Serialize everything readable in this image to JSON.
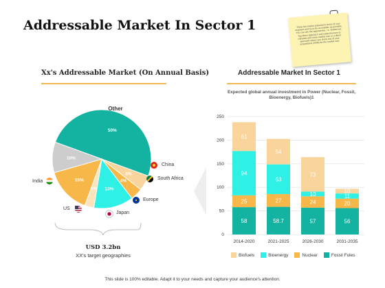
{
  "page": {
    "title": "Addressable Market In Sector 1",
    "footer": "This slide is 100% editable. Adapt it to your needs and capture your audience's attention.",
    "note_text": "Show the market potential in terms of your segment and try to be as realistic as possible. You can use the approaches, i.e. Bottom-up, Top-down approach and value theorem to calculate and show market size or a direct approach where you show one of your acquisitions (SAM) for the market size."
  },
  "left_panel": {
    "subtitle": "Xx's Addressable Market (On Annual Basis)",
    "total": "USD 3.2bn",
    "total_caption": "XX's target geographies"
  },
  "right_panel": {
    "subtitle": "Addressable Market In Sector 1",
    "description": "Expected global annual investment in Power (Nuclear, Fossil, Bioenergy, Biofuels)1"
  },
  "colors": {
    "teal": "#14b3a1",
    "cyan": "#2ff0e4",
    "peach": "#f9d49b",
    "orange": "#f8b749",
    "grey": "#cdcdcd",
    "light_peach": "#fbe3bc"
  },
  "chart_data": [
    {
      "type": "pie",
      "top_label": "Other",
      "slices": [
        {
          "label": "Other",
          "value": 50,
          "value_label": "50%",
          "color": "#14b3a1"
        },
        {
          "label": "China",
          "value": 5,
          "value_label": "5%",
          "color": "#f9d49b"
        },
        {
          "label": "South Africa",
          "value": 4,
          "value_label": "4%",
          "color": "#f8b749"
        },
        {
          "label": "Europe",
          "value": 13,
          "value_label": "13%",
          "color": "#2ff0e4"
        },
        {
          "label": "Japan",
          "value": 3,
          "value_label": "3%",
          "color": "#fbe3bc"
        },
        {
          "label": "US",
          "value": 15,
          "value_label": "15%",
          "color": "#f8b749"
        },
        {
          "label": "India",
          "value": 10,
          "value_label": "10%",
          "color": "#cdcdcd"
        }
      ],
      "country_labels": [
        "China",
        "South Africa",
        "Europe",
        "Japan",
        "US",
        "India"
      ]
    },
    {
      "type": "bar",
      "stacked": true,
      "categories": [
        "2014-2020",
        "2021-2025",
        "2026-2030",
        "2031-2035"
      ],
      "ylim": [
        0,
        250
      ],
      "yticks": [
        0,
        50,
        100,
        150,
        200,
        250
      ],
      "grid": true,
      "legend_position": "bottom",
      "series": [
        {
          "name": "Fossil Fules",
          "color": "#14b3a1",
          "values": [
            58,
            58.7,
            57,
            56
          ],
          "labels": [
            "58",
            "58.7",
            "57",
            "56"
          ]
        },
        {
          "name": "Nuclear",
          "color": "#f8b749",
          "values": [
            25,
            27,
            24,
            20
          ],
          "labels": [
            "25",
            "27",
            "24",
            "20"
          ]
        },
        {
          "name": "Bioenergy",
          "color": "#2ff0e4",
          "values": [
            94,
            63,
            10,
            11
          ],
          "labels": [
            "94",
            "63",
            "10",
            "11"
          ]
        },
        {
          "name": "Biofuels",
          "color": "#f9d49b",
          "values": [
            61,
            54,
            73,
            10
          ],
          "labels": [
            "61",
            "54",
            "73",
            "10"
          ]
        }
      ],
      "legend_order": [
        "Biofuels",
        "Bioenergy",
        "Nuclear",
        "Fossil Fules"
      ]
    }
  ]
}
